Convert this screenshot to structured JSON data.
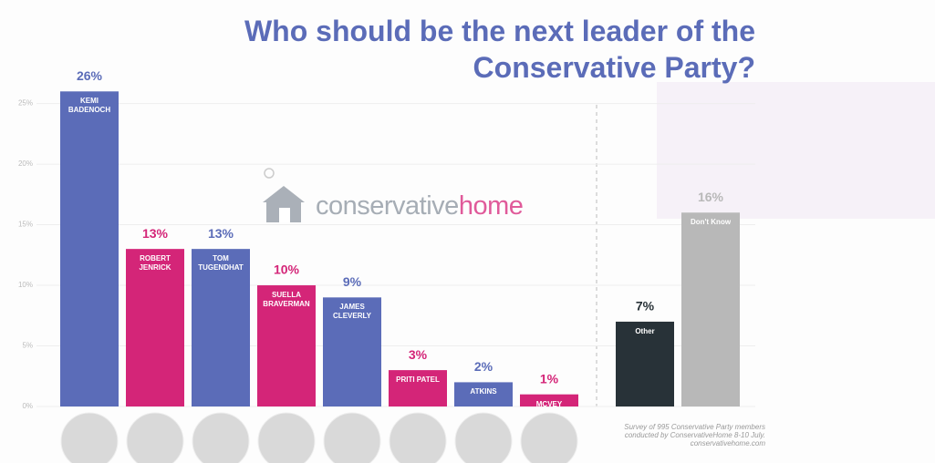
{
  "chart_data": {
    "type": "bar",
    "title": "Who should be the next leader of the Conservative Party?",
    "logo": [
      "conservative",
      "home"
    ],
    "source": [
      "Survey of 995 Conservative Party members",
      "conducted by ConservativeHome 8-10 July.",
      "conservativehome.com"
    ],
    "categories": [
      "KEMI BADENOCH",
      "ROBERT JENRICK",
      "TOM TUGENDHAT",
      "SUELLA BRAVERMAN",
      "JAMES CLEVERLY",
      "PRITI PATEL",
      "ATKINS",
      "MCVEY",
      "Other",
      "Don't Know"
    ],
    "values": [
      26,
      13,
      13,
      10,
      9,
      3,
      2,
      1,
      7,
      16
    ],
    "value_labels": [
      "26%",
      "13%",
      "13%",
      "10%",
      "9%",
      "3%",
      "2%",
      "1%",
      "7%",
      "16%"
    ],
    "colors": [
      "#5b6cb8",
      "#d42578",
      "#5b6cb8",
      "#d42578",
      "#5b6cb8",
      "#d42578",
      "#5b6cb8",
      "#d42578",
      "#283238",
      "#b8b8b8"
    ],
    "ylim": [
      0,
      27
    ],
    "yticks": [
      {
        "value": 0,
        "label": "0%"
      },
      {
        "value": 5,
        "label": "5%"
      },
      {
        "value": 10,
        "label": "10%"
      },
      {
        "value": 15,
        "label": "15%"
      },
      {
        "value": 20,
        "label": "20%"
      },
      {
        "value": 25,
        "label": "25%"
      }
    ],
    "grid": true
  }
}
